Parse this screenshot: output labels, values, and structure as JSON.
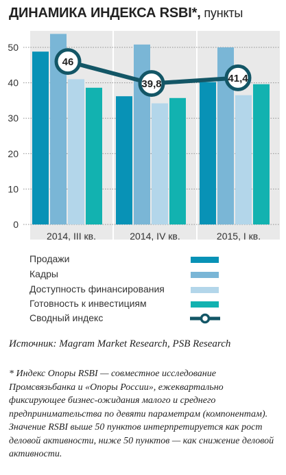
{
  "title": {
    "main": "ДИНАМИКА ИНДЕКСА RSBI*,",
    "unit": " пункты"
  },
  "colors": {
    "sales": "#0892b6",
    "staff": "#7ab6d6",
    "finance": "#b3d6ea",
    "investment": "#12b2b0",
    "index_line": "#135666",
    "group_bg": "#e9e9e9",
    "grid": "#8f8f8f"
  },
  "chart_data": {
    "type": "bar",
    "title": "ДИНАМИКА ИНДЕКСА RSBI*, пункты",
    "categories": [
      "2014, III кв.",
      "2014, IV кв.",
      "2015, I кв."
    ],
    "yticks": [
      0,
      10,
      20,
      30,
      40,
      50
    ],
    "ylim": [
      0,
      55
    ],
    "grid": true,
    "legend_position": "bottom",
    "series": [
      {
        "name": "Продажи",
        "type": "bar",
        "color": "#0892b6",
        "values": [
          48.8,
          36.2,
          40.2
        ]
      },
      {
        "name": "Кадры",
        "type": "bar",
        "color": "#7ab6d6",
        "values": [
          53.8,
          50.8,
          50.0
        ]
      },
      {
        "name": "Доступность финансирования",
        "type": "bar",
        "color": "#b3d6ea",
        "values": [
          41.0,
          34.2,
          36.5
        ]
      },
      {
        "name": "Готовность к инвестициям",
        "type": "bar",
        "color": "#12b2b0",
        "values": [
          38.6,
          35.7,
          39.6
        ]
      },
      {
        "name": "Сводный индекс",
        "type": "line",
        "color": "#135666",
        "values": [
          46,
          39.8,
          41.4
        ],
        "labels": [
          "46",
          "39,8",
          "41,4"
        ]
      }
    ]
  },
  "legend": {
    "items": [
      {
        "label": "Продажи",
        "kind": "bar",
        "color": "#0892b6"
      },
      {
        "label": "Кадры",
        "kind": "bar",
        "color": "#7ab6d6"
      },
      {
        "label": "Доступность финансирования",
        "kind": "bar",
        "color": "#b3d6ea"
      },
      {
        "label": "Готовность к инвестициям",
        "kind": "bar",
        "color": "#12b2b0"
      },
      {
        "label": "Сводный индекс",
        "kind": "line",
        "color": "#135666"
      }
    ]
  },
  "source": "Источник: Magram Market Research, PSB Research",
  "footnote": "* Индекс Опоры RSBI — совместное исследование Промсвязьбанка и «Опоры России», ежеквартально фиксирующее бизнес-ожидания малого и среднего предпринимательства по девяти параметрам (компонентам). Значение RSBI выше 50 пунктов интерпретируется как рост деловой активности, ниже 50 пунктов — как снижение деловой активности."
}
